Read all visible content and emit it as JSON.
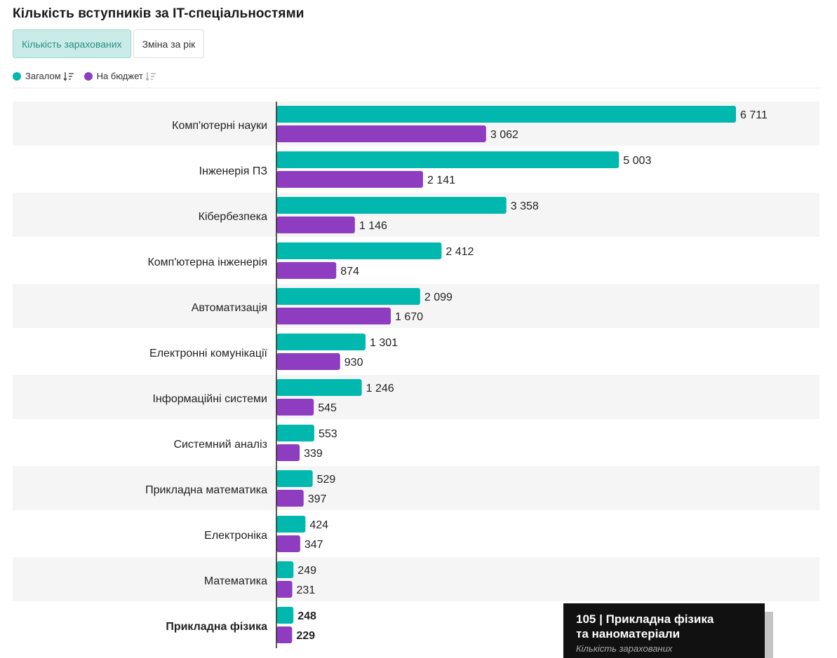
{
  "title": "Кількість вступників за IT-спеціальностями",
  "tabs": [
    {
      "label": "Кількість зарахованих",
      "active": true
    },
    {
      "label": "Зміна за рік",
      "active": false
    }
  ],
  "colors": {
    "total": "#00b8ad",
    "budget": "#8e3cc0",
    "row_bg": "#f5f5f5",
    "axis": "#222222"
  },
  "chart_data": {
    "type": "bar",
    "orientation": "horizontal",
    "categories": [
      "Комп'ютерні науки",
      "Інженерія ПЗ",
      "Кібербезпека",
      "Комп'ютерна інженерія",
      "Автоматизація",
      "Електронні комунікації",
      "Інформаційні системи",
      "Системний аналіз",
      "Прикладна математика",
      "Електроніка",
      "Математика",
      "Прикладна фізика"
    ],
    "highlighted_category": "Прикладна фізика",
    "series": [
      {
        "name": "Загалом",
        "values": [
          6711,
          5003,
          3358,
          2412,
          2099,
          1301,
          1246,
          553,
          529,
          424,
          249,
          248
        ],
        "labels": [
          "6 711",
          "5 003",
          "3 358",
          "2 412",
          "2 099",
          "1 301",
          "1 246",
          "553",
          "529",
          "424",
          "249",
          "248"
        ]
      },
      {
        "name": "На бюджет",
        "values": [
          3062,
          2141,
          1146,
          874,
          1670,
          930,
          545,
          339,
          397,
          347,
          231,
          229
        ],
        "labels": [
          "3 062",
          "2 141",
          "1 146",
          "874",
          "1 670",
          "930",
          "545",
          "339",
          "397",
          "347",
          "231",
          "229"
        ]
      }
    ],
    "xlim": [
      0,
      7000
    ]
  },
  "tooltip": {
    "title_line1": "105 | Прикладна фізика",
    "title_line2": "та наноматеріали",
    "subtitle": "Кількість зарахованих"
  }
}
